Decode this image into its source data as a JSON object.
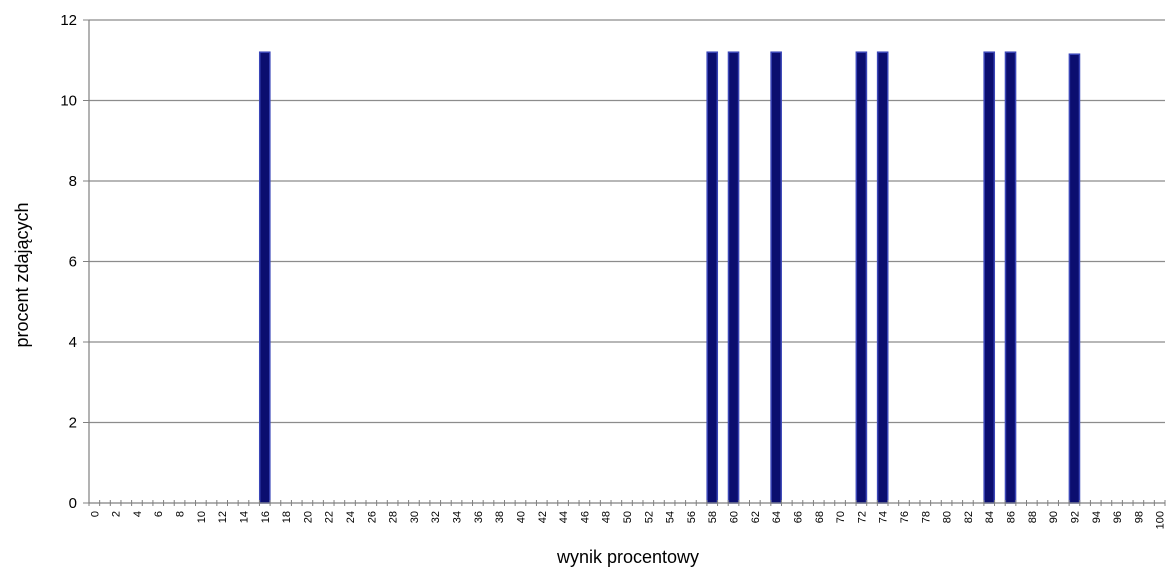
{
  "chart_data": {
    "type": "bar",
    "title": "",
    "xlabel": "wynik procentowy",
    "ylabel": "procent zdających",
    "ylim": [
      0,
      12
    ],
    "yticks": [
      "0",
      "2",
      "4",
      "6",
      "8",
      "10",
      "12"
    ],
    "x_tick_labels": [
      "0",
      "2",
      "4",
      "6",
      "8",
      "10",
      "12",
      "14",
      "16",
      "18",
      "20",
      "22",
      "24",
      "26",
      "28",
      "30",
      "32",
      "34",
      "36",
      "38",
      "40",
      "42",
      "44",
      "46",
      "48",
      "50",
      "52",
      "54",
      "56",
      "58",
      "60",
      "62",
      "64",
      "66",
      "68",
      "70",
      "72",
      "74",
      "76",
      "78",
      "80",
      "82",
      "84",
      "86",
      "88",
      "90",
      "92",
      "94",
      "96",
      "98",
      "100"
    ],
    "grid": true,
    "legend": "none",
    "bars": [
      {
        "x": 16,
        "value": 11.2
      },
      {
        "x": 58,
        "value": 11.2
      },
      {
        "x": 60,
        "value": 11.2
      },
      {
        "x": 64,
        "value": 11.2
      },
      {
        "x": 72,
        "value": 11.2
      },
      {
        "x": 74,
        "value": 11.2
      },
      {
        "x": 84,
        "value": 11.2
      },
      {
        "x": 86,
        "value": 11.2
      },
      {
        "x": 92,
        "value": 11.15
      }
    ],
    "bar_color": "#0b0e6f",
    "bar_edge_color": "#3b46b8",
    "grid_color": "#8c8c8c"
  }
}
